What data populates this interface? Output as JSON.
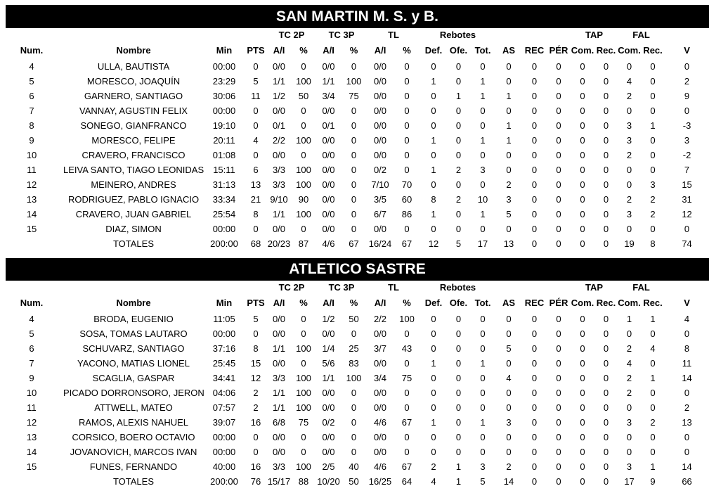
{
  "page": {
    "background": "#ffffff",
    "bar_background": "#000000",
    "bar_text_color": "#ffffff",
    "text_color": "#000000"
  },
  "table": {
    "group_headers": [
      {
        "label": "",
        "span": 4
      },
      {
        "label": "TC 2P",
        "span": 2
      },
      {
        "label": "TC 3P",
        "span": 2
      },
      {
        "label": "TL",
        "span": 2
      },
      {
        "label": "Rebotes",
        "span": 3
      },
      {
        "label": "",
        "span": 3
      },
      {
        "label": "TAP",
        "span": 2
      },
      {
        "label": "FAL",
        "span": 2
      },
      {
        "label": "",
        "span": 1
      }
    ],
    "columns": [
      "Num.",
      "Nombre",
      "Min",
      "PTS",
      "A/I",
      "%",
      "A/I",
      "%",
      "A/I",
      "%",
      "Def.",
      "Ofe.",
      "Tot.",
      "AS",
      "REC",
      "PÉR",
      "Com.",
      "Rec.",
      "Com.",
      "Rec.",
      "V"
    ],
    "totals_label": "TOTALES"
  },
  "teams": [
    {
      "name": "SAN MARTIN M. S. y B.",
      "players": [
        {
          "num": "4",
          "name": "ULLA, BAUTISTA",
          "stats": [
            "00:00",
            "0",
            "0/0",
            "0",
            "0/0",
            "0",
            "0/0",
            "0",
            "0",
            "0",
            "0",
            "0",
            "0",
            "0",
            "0",
            "0",
            "0",
            "0",
            "0"
          ]
        },
        {
          "num": "5",
          "name": "MORESCO, JOAQUÍN",
          "stats": [
            "23:29",
            "5",
            "1/1",
            "100",
            "1/1",
            "100",
            "0/0",
            "0",
            "1",
            "0",
            "1",
            "0",
            "0",
            "0",
            "0",
            "0",
            "4",
            "0",
            "2"
          ]
        },
        {
          "num": "6",
          "name": "GARNERO, SANTIAGO",
          "stats": [
            "30:06",
            "11",
            "1/2",
            "50",
            "3/4",
            "75",
            "0/0",
            "0",
            "0",
            "1",
            "1",
            "1",
            "0",
            "0",
            "0",
            "0",
            "2",
            "0",
            "9"
          ]
        },
        {
          "num": "7",
          "name": "VANNAY, AGUSTIN FELIX",
          "stats": [
            "00:00",
            "0",
            "0/0",
            "0",
            "0/0",
            "0",
            "0/0",
            "0",
            "0",
            "0",
            "0",
            "0",
            "0",
            "0",
            "0",
            "0",
            "0",
            "0",
            "0"
          ]
        },
        {
          "num": "8",
          "name": "SONEGO, GIANFRANCO",
          "stats": [
            "19:10",
            "0",
            "0/1",
            "0",
            "0/1",
            "0",
            "0/0",
            "0",
            "0",
            "0",
            "0",
            "1",
            "0",
            "0",
            "0",
            "0",
            "3",
            "1",
            "-3"
          ]
        },
        {
          "num": "9",
          "name": "MORESCO, FELIPE",
          "stats": [
            "20:11",
            "4",
            "2/2",
            "100",
            "0/0",
            "0",
            "0/0",
            "0",
            "1",
            "0",
            "1",
            "1",
            "0",
            "0",
            "0",
            "0",
            "3",
            "0",
            "3"
          ]
        },
        {
          "num": "10",
          "name": "CRAVERO, FRANCISCO",
          "stats": [
            "01:08",
            "0",
            "0/0",
            "0",
            "0/0",
            "0",
            "0/0",
            "0",
            "0",
            "0",
            "0",
            "0",
            "0",
            "0",
            "0",
            "0",
            "2",
            "0",
            "-2"
          ]
        },
        {
          "num": "11",
          "name": "LEIVA SANTO, TIAGO LEONIDAS",
          "stats": [
            "15:11",
            "6",
            "3/3",
            "100",
            "0/0",
            "0",
            "0/2",
            "0",
            "1",
            "2",
            "3",
            "0",
            "0",
            "0",
            "0",
            "0",
            "0",
            "0",
            "7"
          ]
        },
        {
          "num": "12",
          "name": "MEINERO, ANDRES",
          "stats": [
            "31:13",
            "13",
            "3/3",
            "100",
            "0/0",
            "0",
            "7/10",
            "70",
            "0",
            "0",
            "0",
            "2",
            "0",
            "0",
            "0",
            "0",
            "0",
            "3",
            "15"
          ]
        },
        {
          "num": "13",
          "name": "RODRIGUEZ, PABLO IGNACIO",
          "stats": [
            "33:34",
            "21",
            "9/10",
            "90",
            "0/0",
            "0",
            "3/5",
            "60",
            "8",
            "2",
            "10",
            "3",
            "0",
            "0",
            "0",
            "0",
            "2",
            "2",
            "31"
          ]
        },
        {
          "num": "14",
          "name": "CRAVERO, JUAN GABRIEL",
          "stats": [
            "25:54",
            "8",
            "1/1",
            "100",
            "0/0",
            "0",
            "6/7",
            "86",
            "1",
            "0",
            "1",
            "5",
            "0",
            "0",
            "0",
            "0",
            "3",
            "2",
            "12"
          ]
        },
        {
          "num": "15",
          "name": "DIAZ, SIMON",
          "stats": [
            "00:00",
            "0",
            "0/0",
            "0",
            "0/0",
            "0",
            "0/0",
            "0",
            "0",
            "0",
            "0",
            "0",
            "0",
            "0",
            "0",
            "0",
            "0",
            "0",
            "0"
          ]
        }
      ],
      "totals": [
        "200:00",
        "68",
        "20/23",
        "87",
        "4/6",
        "67",
        "16/24",
        "67",
        "12",
        "5",
        "17",
        "13",
        "0",
        "0",
        "0",
        "0",
        "19",
        "8",
        "74"
      ]
    },
    {
      "name": "ATLETICO SASTRE",
      "players": [
        {
          "num": "4",
          "name": "BRODA, EUGENIO",
          "stats": [
            "11:05",
            "5",
            "0/0",
            "0",
            "1/2",
            "50",
            "2/2",
            "100",
            "0",
            "0",
            "0",
            "0",
            "0",
            "0",
            "0",
            "0",
            "1",
            "1",
            "4"
          ]
        },
        {
          "num": "5",
          "name": "SOSA, TOMAS LAUTARO",
          "stats": [
            "00:00",
            "0",
            "0/0",
            "0",
            "0/0",
            "0",
            "0/0",
            "0",
            "0",
            "0",
            "0",
            "0",
            "0",
            "0",
            "0",
            "0",
            "0",
            "0",
            "0"
          ]
        },
        {
          "num": "6",
          "name": "SCHUVARZ, SANTIAGO",
          "stats": [
            "37:16",
            "8",
            "1/1",
            "100",
            "1/4",
            "25",
            "3/7",
            "43",
            "0",
            "0",
            "0",
            "5",
            "0",
            "0",
            "0",
            "0",
            "2",
            "4",
            "8"
          ]
        },
        {
          "num": "7",
          "name": "YACONO, MATIAS LIONEL",
          "stats": [
            "25:45",
            "15",
            "0/0",
            "0",
            "5/6",
            "83",
            "0/0",
            "0",
            "1",
            "0",
            "1",
            "0",
            "0",
            "0",
            "0",
            "0",
            "4",
            "0",
            "11"
          ]
        },
        {
          "num": "9",
          "name": "SCAGLIA, GASPAR",
          "stats": [
            "34:41",
            "12",
            "3/3",
            "100",
            "1/1",
            "100",
            "3/4",
            "75",
            "0",
            "0",
            "0",
            "4",
            "0",
            "0",
            "0",
            "0",
            "2",
            "1",
            "14"
          ]
        },
        {
          "num": "10",
          "name": "PICADO DORRONSORO, JERONIMO",
          "stats": [
            "04:06",
            "2",
            "1/1",
            "100",
            "0/0",
            "0",
            "0/0",
            "0",
            "0",
            "0",
            "0",
            "0",
            "0",
            "0",
            "0",
            "0",
            "2",
            "0",
            "0"
          ]
        },
        {
          "num": "11",
          "name": "ATTWELL, MATEO",
          "stats": [
            "07:57",
            "2",
            "1/1",
            "100",
            "0/0",
            "0",
            "0/0",
            "0",
            "0",
            "0",
            "0",
            "0",
            "0",
            "0",
            "0",
            "0",
            "0",
            "0",
            "2"
          ]
        },
        {
          "num": "12",
          "name": "RAMOS, ALEXIS NAHUEL",
          "stats": [
            "39:07",
            "16",
            "6/8",
            "75",
            "0/2",
            "0",
            "4/6",
            "67",
            "1",
            "0",
            "1",
            "3",
            "0",
            "0",
            "0",
            "0",
            "3",
            "2",
            "13"
          ]
        },
        {
          "num": "13",
          "name": "CORSICO, BOERO OCTAVIO",
          "stats": [
            "00:00",
            "0",
            "0/0",
            "0",
            "0/0",
            "0",
            "0/0",
            "0",
            "0",
            "0",
            "0",
            "0",
            "0",
            "0",
            "0",
            "0",
            "0",
            "0",
            "0"
          ]
        },
        {
          "num": "14",
          "name": "JOVANOVICH, MARCOS IVAN",
          "stats": [
            "00:00",
            "0",
            "0/0",
            "0",
            "0/0",
            "0",
            "0/0",
            "0",
            "0",
            "0",
            "0",
            "0",
            "0",
            "0",
            "0",
            "0",
            "0",
            "0",
            "0"
          ]
        },
        {
          "num": "15",
          "name": "FUNES, FERNANDO",
          "stats": [
            "40:00",
            "16",
            "3/3",
            "100",
            "2/5",
            "40",
            "4/6",
            "67",
            "2",
            "1",
            "3",
            "2",
            "0",
            "0",
            "0",
            "0",
            "3",
            "1",
            "14"
          ]
        }
      ],
      "totals": [
        "200:00",
        "76",
        "15/17",
        "88",
        "10/20",
        "50",
        "16/25",
        "64",
        "4",
        "1",
        "5",
        "14",
        "0",
        "0",
        "0",
        "0",
        "17",
        "9",
        "66"
      ]
    }
  ]
}
